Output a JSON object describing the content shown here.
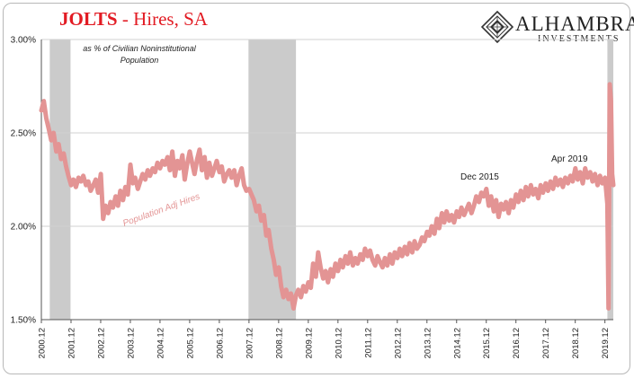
{
  "header": {
    "title_main": "JOLTS",
    "title_sub": " - Hires, SA"
  },
  "logo": {
    "name": "ALHAMBRA",
    "tagline": "INVESTMENTS"
  },
  "colors": {
    "series": "#e39494",
    "recession": "#cbcbcb",
    "title": "#e21b23",
    "grid": "#d0d0d0"
  },
  "chart_data": {
    "type": "line",
    "ylim": [
      1.5,
      3.0
    ],
    "yticks": [
      1.5,
      2.0,
      2.5,
      3.0
    ],
    "ytick_labels": [
      "1.50%",
      "2.00%",
      "2.50%",
      "3.00%"
    ],
    "xlim": [
      2000.917,
      2020.2
    ],
    "xticks": [
      2000.917,
      2001.917,
      2002.917,
      2003.917,
      2004.917,
      2005.917,
      2006.917,
      2007.917,
      2008.917,
      2009.917,
      2010.917,
      2011.917,
      2012.917,
      2013.917,
      2014.917,
      2015.917,
      2016.917,
      2017.917,
      2018.917,
      2019.917
    ],
    "xtick_labels": [
      "2000.12",
      "2001.12",
      "2002.12",
      "2003.12",
      "2004.12",
      "2005.12",
      "2006.12",
      "2007.12",
      "2008.12",
      "2009.12",
      "2010.12",
      "2011.12",
      "2012.12",
      "2013.12",
      "2014.12",
      "2015.12",
      "2016.12",
      "2017.12",
      "2018.12",
      "2019.12"
    ],
    "recessions": [
      [
        2001.2,
        2001.9
      ],
      [
        2007.9,
        2009.5
      ],
      [
        2020.0,
        2020.2
      ]
    ],
    "series": [
      {
        "name": "Population Adj Hires",
        "points": [
          [
            2000.917,
            2.62
          ],
          [
            2001.0,
            2.67
          ],
          [
            2001.08,
            2.58
          ],
          [
            2001.17,
            2.52
          ],
          [
            2001.25,
            2.46
          ],
          [
            2001.33,
            2.5
          ],
          [
            2001.42,
            2.4
          ],
          [
            2001.5,
            2.44
          ],
          [
            2001.58,
            2.36
          ],
          [
            2001.67,
            2.39
          ],
          [
            2001.75,
            2.32
          ],
          [
            2001.83,
            2.27
          ],
          [
            2001.92,
            2.22
          ],
          [
            2002.0,
            2.25
          ],
          [
            2002.08,
            2.21
          ],
          [
            2002.17,
            2.26
          ],
          [
            2002.25,
            2.24
          ],
          [
            2002.33,
            2.27
          ],
          [
            2002.42,
            2.22
          ],
          [
            2002.5,
            2.24
          ],
          [
            2002.58,
            2.19
          ],
          [
            2002.67,
            2.22
          ],
          [
            2002.75,
            2.25
          ],
          [
            2002.83,
            2.18
          ],
          [
            2002.92,
            2.28
          ],
          [
            2003.0,
            2.04
          ],
          [
            2003.08,
            2.11
          ],
          [
            2003.17,
            2.07
          ],
          [
            2003.25,
            2.13
          ],
          [
            2003.33,
            2.1
          ],
          [
            2003.42,
            2.16
          ],
          [
            2003.5,
            2.11
          ],
          [
            2003.58,
            2.19
          ],
          [
            2003.67,
            2.14
          ],
          [
            2003.75,
            2.21
          ],
          [
            2003.83,
            2.17
          ],
          [
            2003.92,
            2.33
          ],
          [
            2004.0,
            2.23
          ],
          [
            2004.08,
            2.26
          ],
          [
            2004.17,
            2.2
          ],
          [
            2004.25,
            2.24
          ],
          [
            2004.33,
            2.28
          ],
          [
            2004.42,
            2.25
          ],
          [
            2004.5,
            2.3
          ],
          [
            2004.58,
            2.27
          ],
          [
            2004.67,
            2.31
          ],
          [
            2004.75,
            2.29
          ],
          [
            2004.83,
            2.34
          ],
          [
            2004.92,
            2.31
          ],
          [
            2005.0,
            2.35
          ],
          [
            2005.08,
            2.33
          ],
          [
            2005.17,
            2.37
          ],
          [
            2005.25,
            2.3
          ],
          [
            2005.33,
            2.4
          ],
          [
            2005.42,
            2.27
          ],
          [
            2005.5,
            2.35
          ],
          [
            2005.58,
            2.31
          ],
          [
            2005.67,
            2.38
          ],
          [
            2005.75,
            2.25
          ],
          [
            2005.83,
            2.33
          ],
          [
            2005.92,
            2.4
          ],
          [
            2006.0,
            2.34
          ],
          [
            2006.08,
            2.28
          ],
          [
            2006.17,
            2.36
          ],
          [
            2006.25,
            2.41
          ],
          [
            2006.33,
            2.3
          ],
          [
            2006.42,
            2.37
          ],
          [
            2006.5,
            2.26
          ],
          [
            2006.58,
            2.34
          ],
          [
            2006.67,
            2.27
          ],
          [
            2006.75,
            2.31
          ],
          [
            2006.83,
            2.35
          ],
          [
            2006.92,
            2.29
          ],
          [
            2007.0,
            2.32
          ],
          [
            2007.08,
            2.24
          ],
          [
            2007.17,
            2.28
          ],
          [
            2007.25,
            2.3
          ],
          [
            2007.33,
            2.26
          ],
          [
            2007.42,
            2.3
          ],
          [
            2007.5,
            2.22
          ],
          [
            2007.58,
            2.27
          ],
          [
            2007.67,
            2.31
          ],
          [
            2007.75,
            2.22
          ],
          [
            2007.83,
            2.19
          ],
          [
            2007.92,
            2.2
          ],
          [
            2008.0,
            2.17
          ],
          [
            2008.08,
            2.14
          ],
          [
            2008.17,
            2.08
          ],
          [
            2008.25,
            2.11
          ],
          [
            2008.33,
            2.03
          ],
          [
            2008.42,
            2.06
          ],
          [
            2008.5,
            1.95
          ],
          [
            2008.58,
            1.98
          ],
          [
            2008.67,
            1.88
          ],
          [
            2008.75,
            1.82
          ],
          [
            2008.83,
            1.74
          ],
          [
            2008.92,
            1.78
          ],
          [
            2009.0,
            1.68
          ],
          [
            2009.08,
            1.62
          ],
          [
            2009.17,
            1.66
          ],
          [
            2009.25,
            1.61
          ],
          [
            2009.33,
            1.64
          ],
          [
            2009.42,
            1.56
          ],
          [
            2009.5,
            1.63
          ],
          [
            2009.58,
            1.66
          ],
          [
            2009.67,
            1.62
          ],
          [
            2009.75,
            1.68
          ],
          [
            2009.83,
            1.65
          ],
          [
            2009.92,
            1.7
          ],
          [
            2010.0,
            1.67
          ],
          [
            2010.08,
            1.8
          ],
          [
            2010.17,
            1.73
          ],
          [
            2010.25,
            1.86
          ],
          [
            2010.33,
            1.78
          ],
          [
            2010.42,
            1.72
          ],
          [
            2010.5,
            1.76
          ],
          [
            2010.58,
            1.7
          ],
          [
            2010.67,
            1.77
          ],
          [
            2010.75,
            1.73
          ],
          [
            2010.83,
            1.8
          ],
          [
            2010.92,
            1.76
          ],
          [
            2011.0,
            1.82
          ],
          [
            2011.08,
            1.78
          ],
          [
            2011.17,
            1.84
          ],
          [
            2011.25,
            1.8
          ],
          [
            2011.33,
            1.86
          ],
          [
            2011.42,
            1.79
          ],
          [
            2011.5,
            1.83
          ],
          [
            2011.58,
            1.8
          ],
          [
            2011.67,
            1.85
          ],
          [
            2011.75,
            1.82
          ],
          [
            2011.83,
            1.88
          ],
          [
            2011.92,
            1.84
          ],
          [
            2012.0,
            1.87
          ],
          [
            2012.08,
            1.82
          ],
          [
            2012.17,
            1.79
          ],
          [
            2012.25,
            1.84
          ],
          [
            2012.33,
            1.81
          ],
          [
            2012.42,
            1.78
          ],
          [
            2012.5,
            1.83
          ],
          [
            2012.58,
            1.79
          ],
          [
            2012.67,
            1.85
          ],
          [
            2012.75,
            1.8
          ],
          [
            2012.83,
            1.86
          ],
          [
            2012.92,
            1.83
          ],
          [
            2013.0,
            1.88
          ],
          [
            2013.08,
            1.84
          ],
          [
            2013.17,
            1.89
          ],
          [
            2013.25,
            1.85
          ],
          [
            2013.33,
            1.91
          ],
          [
            2013.42,
            1.86
          ],
          [
            2013.5,
            1.92
          ],
          [
            2013.58,
            1.88
          ],
          [
            2013.67,
            1.9
          ],
          [
            2013.75,
            1.94
          ],
          [
            2013.83,
            1.92
          ],
          [
            2013.92,
            1.97
          ],
          [
            2014.0,
            1.95
          ],
          [
            2014.08,
            2.0
          ],
          [
            2014.17,
            1.96
          ],
          [
            2014.25,
            2.04
          ],
          [
            2014.33,
            1.99
          ],
          [
            2014.42,
            2.07
          ],
          [
            2014.5,
            2.02
          ],
          [
            2014.58,
            2.08
          ],
          [
            2014.67,
            2.03
          ],
          [
            2014.75,
            2.06
          ],
          [
            2014.83,
            2.02
          ],
          [
            2014.92,
            2.08
          ],
          [
            2015.0,
            2.05
          ],
          [
            2015.08,
            2.1
          ],
          [
            2015.17,
            2.06
          ],
          [
            2015.25,
            2.09
          ],
          [
            2015.33,
            2.12
          ],
          [
            2015.42,
            2.07
          ],
          [
            2015.5,
            2.11
          ],
          [
            2015.58,
            2.16
          ],
          [
            2015.67,
            2.13
          ],
          [
            2015.75,
            2.18
          ],
          [
            2015.83,
            2.16
          ],
          [
            2015.92,
            2.2
          ],
          [
            2016.0,
            2.11
          ],
          [
            2016.08,
            2.16
          ],
          [
            2016.17,
            2.08
          ],
          [
            2016.25,
            2.14
          ],
          [
            2016.33,
            2.05
          ],
          [
            2016.42,
            2.12
          ],
          [
            2016.5,
            2.09
          ],
          [
            2016.58,
            2.13
          ],
          [
            2016.67,
            2.07
          ],
          [
            2016.75,
            2.14
          ],
          [
            2016.83,
            2.1
          ],
          [
            2016.92,
            2.17
          ],
          [
            2017.0,
            2.13
          ],
          [
            2017.08,
            2.19
          ],
          [
            2017.17,
            2.14
          ],
          [
            2017.25,
            2.21
          ],
          [
            2017.33,
            2.16
          ],
          [
            2017.42,
            2.22
          ],
          [
            2017.5,
            2.17
          ],
          [
            2017.58,
            2.2
          ],
          [
            2017.67,
            2.15
          ],
          [
            2017.75,
            2.22
          ],
          [
            2017.83,
            2.18
          ],
          [
            2017.92,
            2.23
          ],
          [
            2018.0,
            2.19
          ],
          [
            2018.08,
            2.24
          ],
          [
            2018.17,
            2.2
          ],
          [
            2018.25,
            2.26
          ],
          [
            2018.33,
            2.22
          ],
          [
            2018.42,
            2.25
          ],
          [
            2018.5,
            2.21
          ],
          [
            2018.58,
            2.26
          ],
          [
            2018.67,
            2.23
          ],
          [
            2018.75,
            2.27
          ],
          [
            2018.83,
            2.24
          ],
          [
            2018.92,
            2.31
          ],
          [
            2019.0,
            2.25
          ],
          [
            2019.08,
            2.29
          ],
          [
            2019.17,
            2.23
          ],
          [
            2019.25,
            2.31
          ],
          [
            2019.33,
            2.26
          ],
          [
            2019.42,
            2.29
          ],
          [
            2019.5,
            2.24
          ],
          [
            2019.58,
            2.28
          ],
          [
            2019.67,
            2.22
          ],
          [
            2019.75,
            2.27
          ],
          [
            2019.83,
            2.23
          ],
          [
            2019.92,
            2.26
          ],
          [
            2020.0,
            2.12
          ],
          [
            2020.04,
            1.56
          ],
          [
            2020.08,
            2.76
          ],
          [
            2020.12,
            2.67
          ],
          [
            2020.16,
            2.28
          ],
          [
            2020.2,
            2.22
          ]
        ]
      }
    ],
    "annotations": {
      "subtitle_note_line1": "as % of Civilian Noninstitutional",
      "subtitle_note_line2": "Population",
      "series_label": "Population  Adj Hires",
      "dec2015": "Dec 2015",
      "apr2019": "Apr 2019"
    }
  }
}
